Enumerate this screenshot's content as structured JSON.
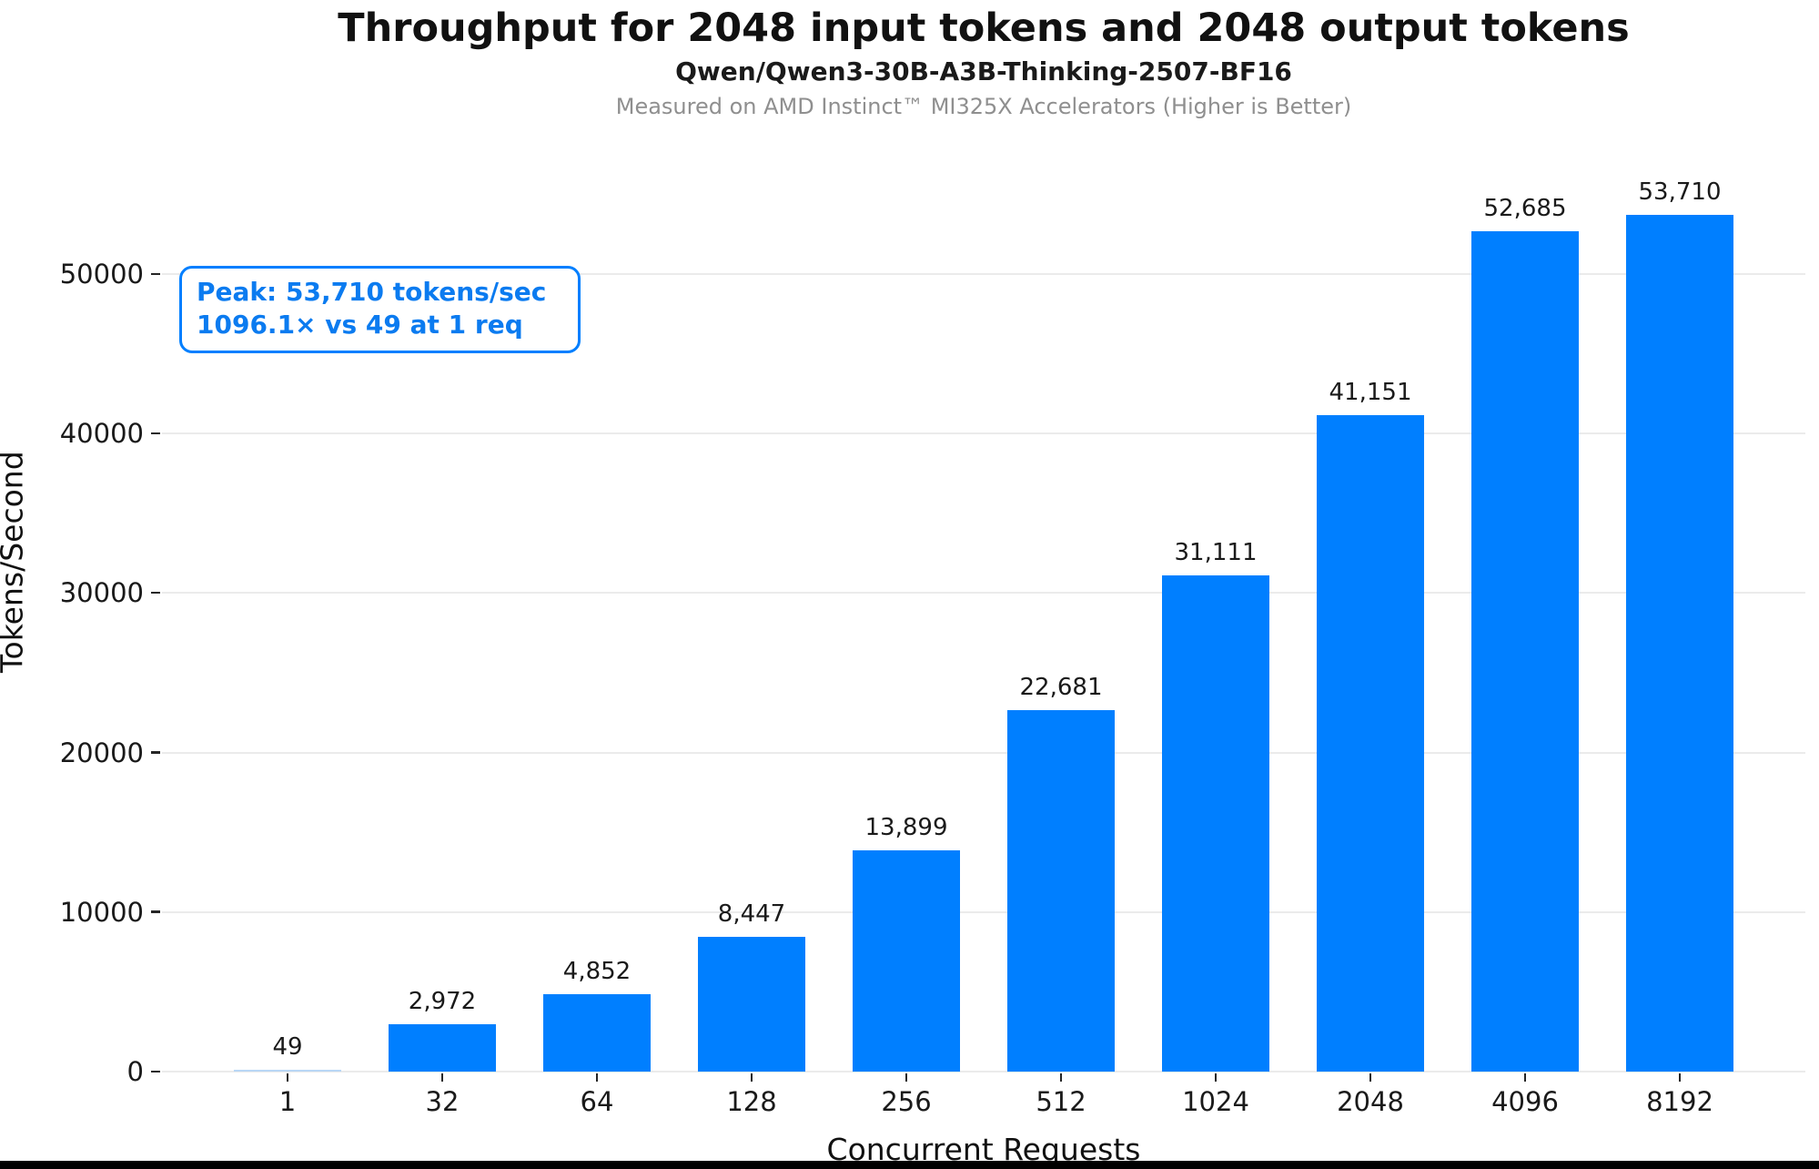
{
  "header": {
    "title": "Throughput for 2048 input tokens and 2048 output tokens",
    "subtitle": "Qwen/Qwen3-30B-A3B-Thinking-2507-BF16",
    "caption": "Measured on AMD Instinct™ MI325X Accelerators (Higher is Better)"
  },
  "annotation": {
    "line1": "Peak: 53,710 tokens/sec",
    "line2": "1096.1× vs 49 at 1 req"
  },
  "colors": {
    "bar": "#007FFF",
    "bar_tiny": "#b9d7f5",
    "annotation_text": "#0b7bf0",
    "annotation_border": "#007FFF",
    "gridline": "#ebebeb",
    "caption_gray": "#8f8f8f"
  },
  "chart_data": {
    "type": "bar",
    "title": "Throughput for 2048 input tokens and 2048 output tokens",
    "subtitle": "Qwen/Qwen3-30B-A3B-Thinking-2507-BF16",
    "caption": "Measured on AMD Instinct™ MI325X Accelerators (Higher is Better)",
    "categories": [
      "1",
      "32",
      "64",
      "128",
      "256",
      "512",
      "1024",
      "2048",
      "4096",
      "8192"
    ],
    "values": [
      49,
      2972,
      4852,
      8447,
      13899,
      22681,
      31111,
      41151,
      52685,
      53710
    ],
    "value_labels": [
      "49",
      "2,972",
      "4,852",
      "8,447",
      "13,899",
      "22,681",
      "31,111",
      "41,151",
      "52,685",
      "53,710"
    ],
    "xlabel": "Concurrent Requests",
    "ylabel": "Tokens/Second",
    "yticks": [
      0,
      10000,
      20000,
      30000,
      40000,
      50000
    ],
    "ytick_labels": [
      "0",
      "10000",
      "20000",
      "30000",
      "40000",
      "50000"
    ],
    "ylim": [
      0,
      55000
    ],
    "grid": "horizontal",
    "legend": "none",
    "bar_color": "#007FFF",
    "annotation": "Peak: 53,710 tokens/sec\n1096.1× vs 49 at 1 req"
  }
}
